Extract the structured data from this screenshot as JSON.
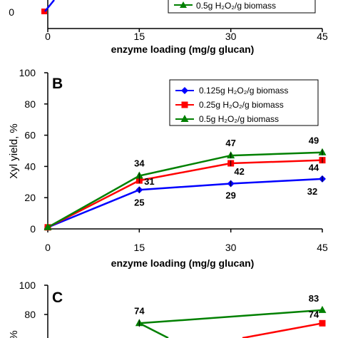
{
  "chart_data": [
    {
      "type": "line",
      "panel": "A (partial)",
      "x": [
        0,
        15,
        30,
        45
      ],
      "xlabel": "enzyme loading (mg/g glucan)",
      "xticks": [
        "0",
        "15",
        "30",
        "45"
      ],
      "yticks_visible": [
        "0"
      ],
      "legend_visible": [
        "0.5g H₂O₂/g biomass"
      ],
      "series": [
        {
          "name": "0.5g H₂O₂/g biomass",
          "color": "#008000",
          "marker": "triangle"
        }
      ]
    },
    {
      "type": "line",
      "panel": "B",
      "x": [
        0,
        15,
        30,
        45
      ],
      "xlabel": "enzyme loading (mg/g glucan)",
      "ylabel": "Xyl yield, %",
      "ylim": [
        0,
        100
      ],
      "xticks": [
        "0",
        "15",
        "30",
        "45"
      ],
      "yticks": [
        "0",
        "20",
        "40",
        "60",
        "80",
        "100"
      ],
      "legend_position": "top-right",
      "series": [
        {
          "name": "0.125g H₂O₂/g biomass",
          "color": "#0000ff",
          "marker": "diamond",
          "values": [
            1,
            25,
            29,
            32
          ],
          "labels": [
            "",
            "25",
            "29",
            "32"
          ]
        },
        {
          "name": "0.25g H₂O₂/g biomass",
          "color": "#ff0000",
          "marker": "square",
          "values": [
            1,
            31,
            42,
            44
          ],
          "labels": [
            "",
            "31",
            "42",
            "44"
          ]
        },
        {
          "name": "0.5g H₂O₂/g biomass",
          "color": "#008000",
          "marker": "triangle",
          "values": [
            1,
            34,
            47,
            49
          ],
          "labels": [
            "",
            "34",
            "47",
            "49"
          ]
        }
      ]
    },
    {
      "type": "line",
      "panel": "C (partial)",
      "x": [
        0,
        15,
        30,
        45
      ],
      "ylabel_fragment": "%",
      "ylim": [
        0,
        100
      ],
      "yticks_visible": [
        "80",
        "100"
      ],
      "series": [
        {
          "name": "0.5g H₂O₂/g biomass",
          "color": "#008000",
          "marker": "triangle",
          "values": [
            null,
            74,
            null,
            83
          ],
          "labels": [
            "",
            "74",
            "",
            "83"
          ]
        },
        {
          "name": "0.25g H₂O₂/g biomass",
          "color": "#ff0000",
          "marker": "square",
          "values": [
            null,
            null,
            null,
            74
          ],
          "labels": [
            "",
            "",
            "",
            "74"
          ]
        }
      ]
    }
  ],
  "panel_b": {
    "letter": "B"
  },
  "panel_c": {
    "letter": "C"
  }
}
